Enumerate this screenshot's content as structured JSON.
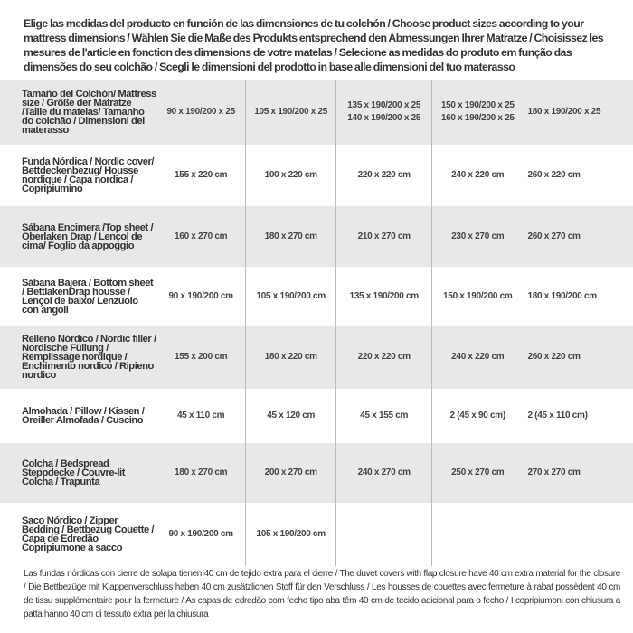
{
  "title": "Elige las medidas del producto en función de las dimensiones de tu colchón / Choose product sizes according to your mattress dimensions / Wählen Sie die Maße des Produkts entsprechend den Abmessungen Ihrer Matratze / Choisissez les mesures de l'article en fonction des dimensions de votre matelas / Selecione as medidas do produto em função das dimensões do seu colchão / Scegli le dimensioni del prodotto in base alle dimensioni del tuo materasso",
  "table": {
    "header": {
      "label": "Tamaño del Colchón/ Mattress size / Größe der Matratze /Taille du matelas/ Tamanho do colchão / Dimensioni del materasso",
      "sizes": [
        "90 x 190/200 x 25",
        "105 x 190/200 x 25",
        "135 x 190/200 x 25\n140 x 190/200 x 25",
        "150 x 190/200 x 25\n160 x 190/200 x 25",
        "180 x 190/200 x 25"
      ]
    },
    "rows": [
      {
        "label": "Funda Nórdica / Nordic cover/ Bettdeckenbezug/ Housse nordique / Capa nordica / Copripiumino",
        "values": [
          "155 x 220 cm",
          "100 x 220 cm",
          "220 x 220 cm",
          "240 x 220 cm",
          "260 x 220 cm"
        ]
      },
      {
        "label": "Sábana Encimera /Top sheet / Oberlaken Drap / Lençol de cima/ Foglio da appoggio",
        "values": [
          "160 x 270 cm",
          "180 x 270 cm",
          "210 x 270 cm",
          "230 x 270 cm",
          "260 x 270 cm"
        ]
      },
      {
        "label": "Sábana Bajera / Bottom sheet / BettlakenDrap housse / Lençol de baixo/ Lenzuolo con angoli",
        "values": [
          "90 x 190/200 cm",
          "105 x 190/200 cm",
          "135 x 190/200 cm",
          "150 x 190/200 cm",
          "180 x 190/200 cm"
        ]
      },
      {
        "label": "Relleno Nórdico / Nordic filler / Nordische Füllung / Remplissage nordique / Enchimento nordico / Ripieno nordico",
        "values": [
          "155 x 200 cm",
          "180 x 220 cm",
          "220 x 220 cm",
          "240 x 220 cm",
          "260 x 220 cm"
        ]
      },
      {
        "label": "Almohada / Pillow / Kissen / Oreiller Almofada / Cuscino",
        "values": [
          "45 x 110 cm",
          "45 x 120 cm",
          "45 x 155 cm",
          "2 (45 x 90 cm)",
          "2 (45 x 110 cm)"
        ]
      },
      {
        "label": "Colcha / Bedspread Steppdecke / Couvre-lit Colcha / Trapunta",
        "values": [
          "180 x 270 cm",
          "200 x 270 cm",
          "240 x 270 cm",
          "250 x 270 cm",
          "270 x 270 cm"
        ]
      },
      {
        "label": "Saco Nórdico / Zipper Bedding / Bettbezug Couette / Capa de Edredão Copripiumone a sacco",
        "values": [
          "90 x 190/200 cm",
          "105 x 190/200 cm",
          "",
          "",
          ""
        ]
      }
    ]
  },
  "footer": "Las fundas nórdicas con cierre de solapa tienen 40 cm de tejido extra para el cierre / The duvet covers with flap closure have 40 cm extra material for the closure / Die Bettbezüge mit Klappenverschluss haben 40 cm zusätzlichen Stoff für den Verschluss / Les housses de couettes avec fermeture à rabat possèdent 40 cm de tissu supplémentaire pour la fermeture / As capas de edredão com fecho tipo aba têm 40 cm de tecido adicional para o fecho / I copripiumoni con chiusura a patta hanno 40 cm di tessuto extra per la chiusura"
}
